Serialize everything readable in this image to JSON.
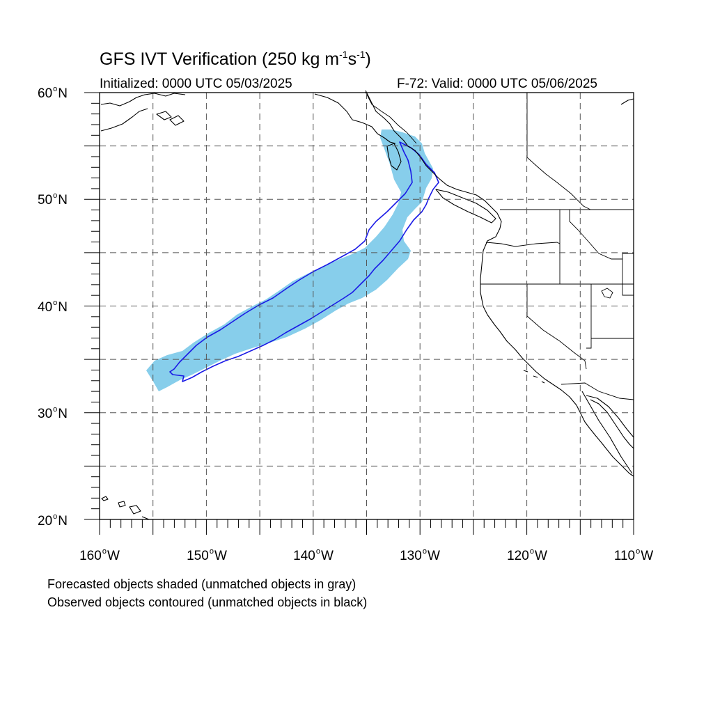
{
  "title": {
    "text": "GFS IVT Verification (250 kg m",
    "sup1": "-1",
    "mid": "s",
    "sup2": "-1",
    "end": ")"
  },
  "subtitle_left": "Initialized: 0000 UTC 05/03/2025",
  "subtitle_right": "F-72: Valid: 0000 UTC 05/06/2025",
  "axes": {
    "lat_labels": [
      {
        "num": "60",
        "hem": "N"
      },
      {
        "num": "50",
        "hem": "N"
      },
      {
        "num": "40",
        "hem": "N"
      },
      {
        "num": "30",
        "hem": "N"
      },
      {
        "num": "20",
        "hem": "N"
      }
    ],
    "lon_labels": [
      {
        "num": "160",
        "hem": "W"
      },
      {
        "num": "150",
        "hem": "W"
      },
      {
        "num": "140",
        "hem": "W"
      },
      {
        "num": "130",
        "hem": "W"
      },
      {
        "num": "120",
        "hem": "W"
      },
      {
        "num": "110",
        "hem": "W"
      }
    ]
  },
  "notes": [
    "Forecasted objects shaded (unmatched objects in gray)",
    "Observed objects contoured (unmatched objects in black)"
  ],
  "colors": {
    "forecast_fill": "#87ceeb",
    "observed_contour": "#1a1ae6",
    "coastline": "#000000",
    "grid": "#555555"
  }
}
